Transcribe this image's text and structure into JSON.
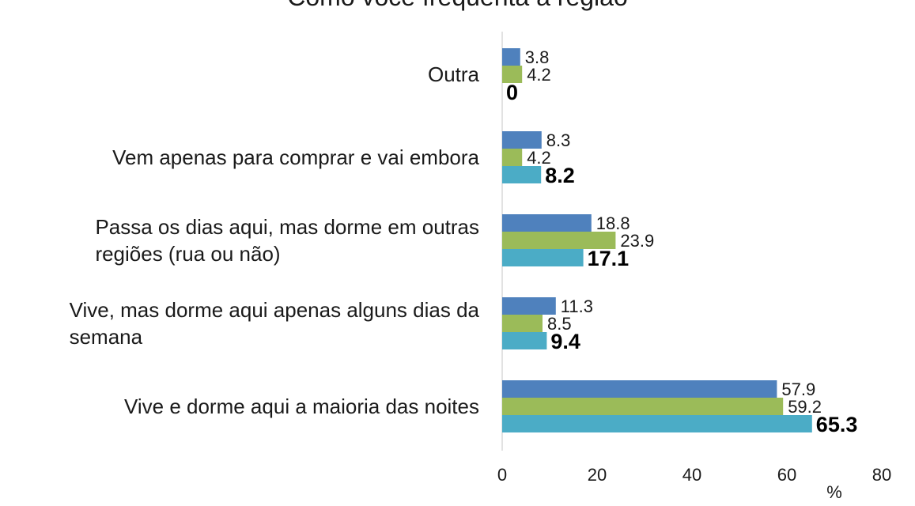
{
  "chart_data": {
    "type": "bar",
    "orientation": "horizontal",
    "title": "Como você frequenta a região",
    "xlabel": "%",
    "ylabel": "",
    "xlim": [
      0,
      80
    ],
    "xticks": [
      0,
      20,
      40,
      60,
      80
    ],
    "grid": false,
    "legend": "none",
    "categories": [
      "Outra",
      "Vem apenas para comprar e vai embora",
      "Passa os dias aqui, mas dorme em outras regiões (rua ou não)",
      "Vive, mas dorme aqui apenas alguns dias da semana",
      "Vive e dorme aqui a maioria das noites"
    ],
    "category_lines": [
      [
        "Outra"
      ],
      [
        "Vem apenas para comprar e vai embora"
      ],
      [
        "Passa os dias aqui, mas dorme em outras",
        "regiões (rua ou não)"
      ],
      [
        "Vive, mas dorme aqui apenas alguns dias da",
        "semana"
      ],
      [
        "Vive e dorme aqui a maioria das noites"
      ]
    ],
    "series": [
      {
        "color": "#4F81BD",
        "values": [
          3.8,
          8.3,
          18.8,
          11.3,
          57.9
        ],
        "labels": [
          "3.8",
          "8.3",
          "18.8",
          "11.3",
          "57.9"
        ]
      },
      {
        "color": "#9BBB59",
        "values": [
          4.2,
          4.2,
          23.9,
          8.5,
          59.2
        ],
        "labels": [
          "4.2",
          "4.2",
          "23.9",
          "8.5",
          "59.2"
        ]
      },
      {
        "color": "#4BACC6",
        "values": [
          0,
          8.2,
          17.1,
          9.4,
          65.3
        ],
        "labels": [
          "0",
          "8.2",
          "17.1",
          "9.4",
          "65.3"
        ],
        "emphasis": true
      }
    ]
  }
}
